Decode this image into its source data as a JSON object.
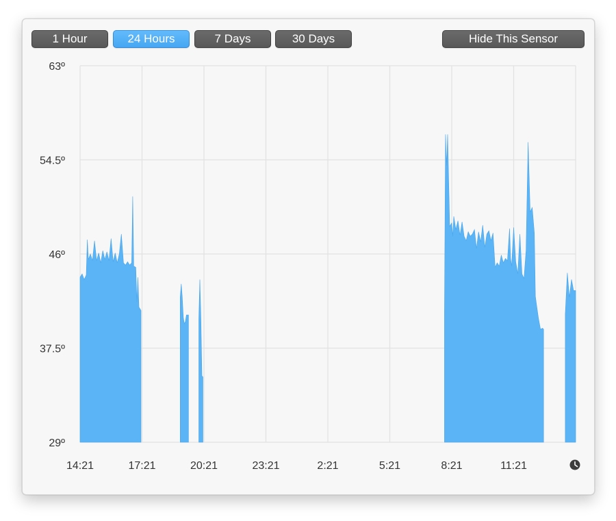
{
  "toolbar": {
    "ranges": [
      "1 Hour",
      "24 Hours",
      "7 Days",
      "30 Days"
    ],
    "active_range": "24 Hours",
    "hide_label": "Hide This Sensor"
  },
  "colors": {
    "fill": "#5ab4f5",
    "grid": "#e2e2e2",
    "active_button": "#52aef7",
    "button": "#626262"
  },
  "icons": {
    "now": "clock-icon"
  },
  "chart_data": {
    "type": "area",
    "title": "",
    "xlabel": "",
    "ylabel": "",
    "x_unit": "hours since 14:21",
    "ylim": [
      29,
      63
    ],
    "xlim": [
      0,
      24
    ],
    "y_ticks": [
      "63º",
      "54.5º",
      "46º",
      "37.5º",
      "29º"
    ],
    "y_tick_values": [
      63,
      54.5,
      46,
      37.5,
      29
    ],
    "x_ticks": [
      "14:21",
      "17:21",
      "20:21",
      "23:21",
      "2:21",
      "5:21",
      "8:21",
      "11:21"
    ],
    "x_tick_values": [
      0,
      3,
      6,
      9,
      12,
      15,
      18,
      21
    ],
    "grid": true,
    "series": [
      {
        "segments": [
          [
            [
              0.0,
              43.9
            ],
            [
              0.1,
              44.2
            ],
            [
              0.2,
              43.7
            ],
            [
              0.3,
              44.1
            ],
            [
              0.35,
              47.3
            ],
            [
              0.4,
              45.5
            ],
            [
              0.5,
              46.0
            ],
            [
              0.6,
              45.4
            ],
            [
              0.7,
              47.2
            ],
            [
              0.8,
              45.4
            ],
            [
              0.9,
              46.1
            ],
            [
              1.0,
              45.2
            ],
            [
              1.1,
              46.3
            ],
            [
              1.2,
              45.5
            ],
            [
              1.3,
              46.2
            ],
            [
              1.4,
              45.4
            ],
            [
              1.5,
              47.4
            ],
            [
              1.6,
              45.3
            ],
            [
              1.7,
              46.1
            ],
            [
              1.8,
              45.2
            ],
            [
              1.9,
              46.0
            ],
            [
              2.0,
              47.8
            ],
            [
              2.1,
              45.2
            ],
            [
              2.2,
              45.0
            ],
            [
              2.3,
              45.3
            ],
            [
              2.4,
              45.0
            ],
            [
              2.5,
              45.2
            ],
            [
              2.55,
              51.2
            ],
            [
              2.6,
              44.9
            ],
            [
              2.7,
              44.8
            ],
            [
              2.75,
              41.7
            ],
            [
              2.8,
              43.9
            ],
            [
              2.85,
              41.2
            ],
            [
              2.95,
              40.9
            ]
          ],
          [
            [
              4.85,
              42.1
            ],
            [
              4.9,
              43.3
            ],
            [
              4.95,
              42.1
            ],
            [
              5.0,
              40.3
            ],
            [
              5.05,
              39.7
            ],
            [
              5.1,
              39.9
            ],
            [
              5.15,
              40.5
            ],
            [
              5.25,
              40.5
            ]
          ],
          [
            [
              5.75,
              40.2
            ],
            [
              5.8,
              43.7
            ],
            [
              5.85,
              40.2
            ],
            [
              5.9,
              35.0
            ],
            [
              5.95,
              34.9
            ]
          ],
          [
            [
              17.65,
              40.8
            ],
            [
              17.7,
              56.8
            ],
            [
              17.75,
              54.0
            ],
            [
              17.8,
              56.8
            ],
            [
              17.9,
              48.5
            ],
            [
              18.0,
              48.8
            ],
            [
              18.05,
              47.6
            ],
            [
              18.1,
              49.4
            ],
            [
              18.2,
              48.2
            ],
            [
              18.3,
              49.0
            ],
            [
              18.4,
              47.7
            ],
            [
              18.5,
              48.9
            ],
            [
              18.6,
              47.6
            ],
            [
              18.7,
              47.2
            ],
            [
              18.8,
              48.0
            ],
            [
              18.9,
              47.6
            ],
            [
              19.0,
              47.8
            ],
            [
              19.1,
              48.2
            ],
            [
              19.2,
              46.5
            ],
            [
              19.3,
              48.0
            ],
            [
              19.4,
              47.1
            ],
            [
              19.5,
              48.6
            ],
            [
              19.6,
              46.6
            ],
            [
              19.7,
              47.8
            ],
            [
              19.8,
              48.1
            ],
            [
              19.9,
              47.2
            ],
            [
              20.0,
              47.9
            ],
            [
              20.1,
              44.8
            ],
            [
              20.2,
              45.2
            ],
            [
              20.3,
              44.9
            ],
            [
              20.4,
              45.9
            ],
            [
              20.5,
              45.2
            ],
            [
              20.6,
              45.6
            ],
            [
              20.7,
              45.4
            ],
            [
              20.8,
              48.3
            ],
            [
              20.85,
              45.6
            ],
            [
              20.9,
              44.9
            ],
            [
              21.0,
              48.4
            ],
            [
              21.1,
              45.3
            ],
            [
              21.2,
              44.2
            ],
            [
              21.3,
              47.8
            ],
            [
              21.4,
              44.2
            ],
            [
              21.5,
              43.8
            ],
            [
              21.6,
              46.3
            ],
            [
              21.7,
              56.1
            ],
            [
              21.8,
              49.8
            ],
            [
              21.9,
              50.2
            ],
            [
              22.0,
              47.9
            ],
            [
              22.05,
              42.2
            ],
            [
              22.1,
              41.5
            ],
            [
              22.2,
              40.2
            ],
            [
              22.3,
              39.2
            ],
            [
              22.4,
              39.3
            ],
            [
              22.45,
              39.2
            ]
          ],
          [
            [
              23.5,
              40.6
            ],
            [
              23.6,
              44.3
            ],
            [
              23.7,
              42.1
            ],
            [
              23.8,
              43.7
            ],
            [
              23.9,
              42.7
            ],
            [
              24.0,
              42.7
            ]
          ]
        ]
      }
    ]
  }
}
